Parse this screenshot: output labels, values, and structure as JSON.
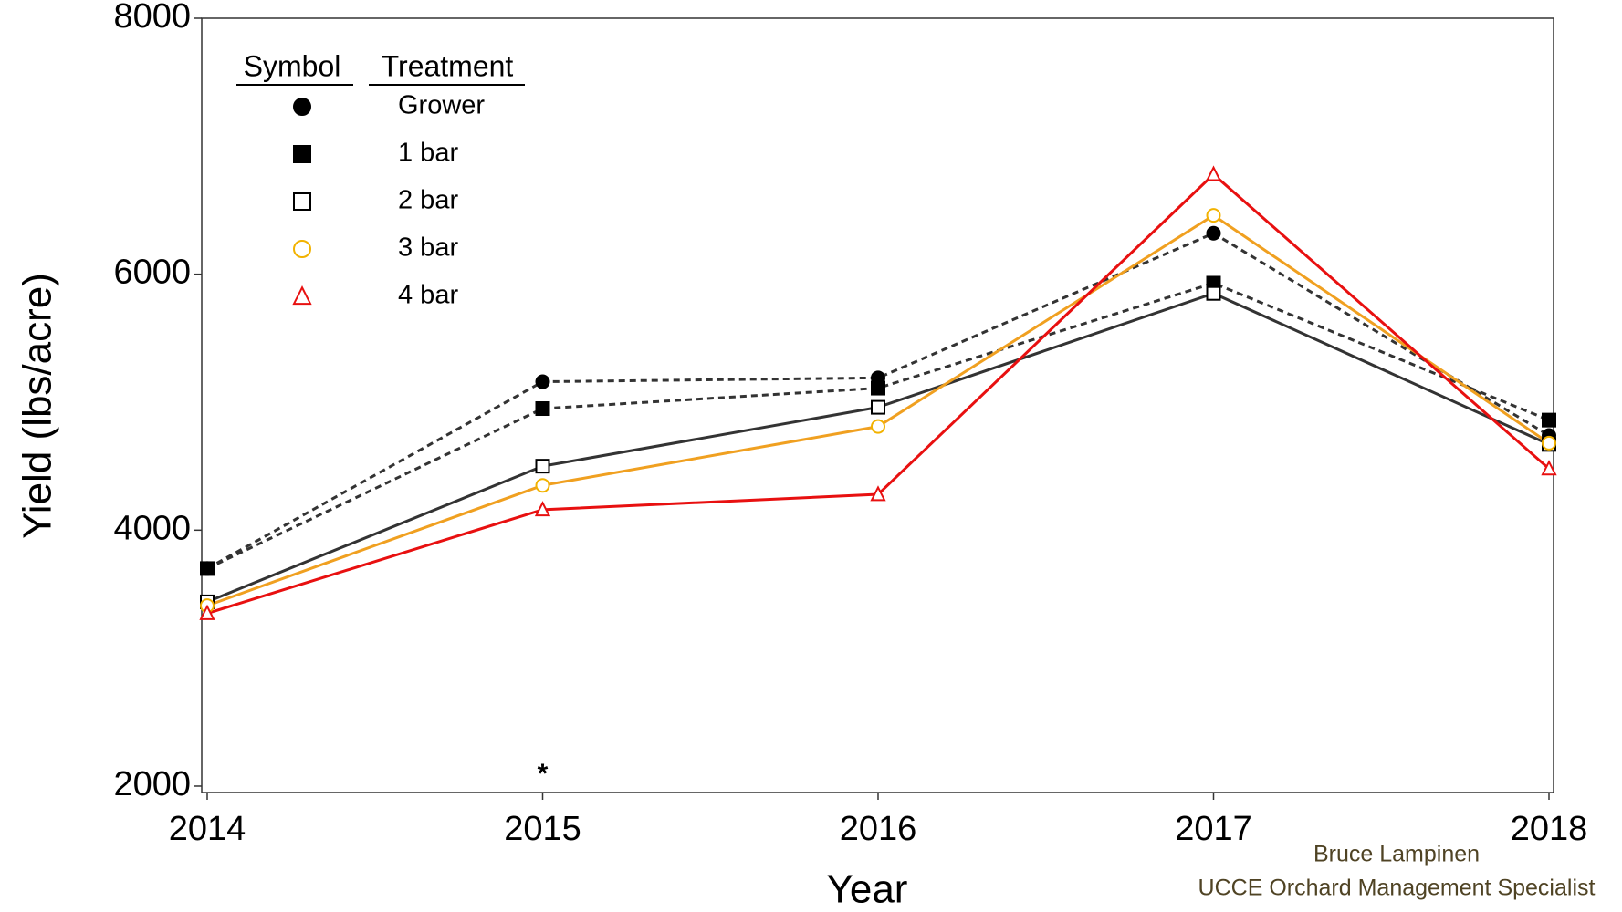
{
  "chart_data": {
    "type": "line",
    "y_label": "Yield (lbs/acre)",
    "x_label": "Year",
    "legend_headers": [
      "Symbol",
      "Treatment"
    ],
    "categories": [
      "2014",
      "2015",
      "2016",
      "2017",
      "2018"
    ],
    "series": [
      {
        "name": "Grower",
        "color": "#000000",
        "line_color": "#333333",
        "marker": "circle",
        "filled": true,
        "dashed": true,
        "values": [
          3700,
          5160,
          5190,
          6320,
          4740
        ]
      },
      {
        "name": "1 bar",
        "color": "#000000",
        "line_color": "#333333",
        "marker": "square",
        "filled": true,
        "dashed": true,
        "values": [
          3700,
          4950,
          5110,
          5930,
          4860
        ]
      },
      {
        "name": "2 bar",
        "color": "#000000",
        "line_color": "#333333",
        "marker": "square",
        "filled": false,
        "dashed": false,
        "values": [
          3440,
          4500,
          4960,
          5850,
          4670
        ]
      },
      {
        "name": "3 bar",
        "color": "#f2b200",
        "line_color": "#f0a020",
        "marker": "circle",
        "filled": false,
        "dashed": false,
        "values": [
          3410,
          4350,
          4810,
          6460,
          4680
        ]
      },
      {
        "name": "4 bar",
        "color": "#e81010",
        "line_color": "#e81010",
        "marker": "triangle",
        "filled": false,
        "dashed": false,
        "values": [
          3350,
          4160,
          4280,
          6780,
          4480
        ]
      }
    ],
    "ylim": [
      1950,
      8000
    ],
    "yticks": [
      2000,
      4000,
      6000,
      8000
    ],
    "annotations": [
      {
        "text": "*",
        "category": "2015"
      }
    ],
    "credits": [
      "Bruce Lampinen",
      "UCCE Orchard Management Specialist"
    ]
  }
}
